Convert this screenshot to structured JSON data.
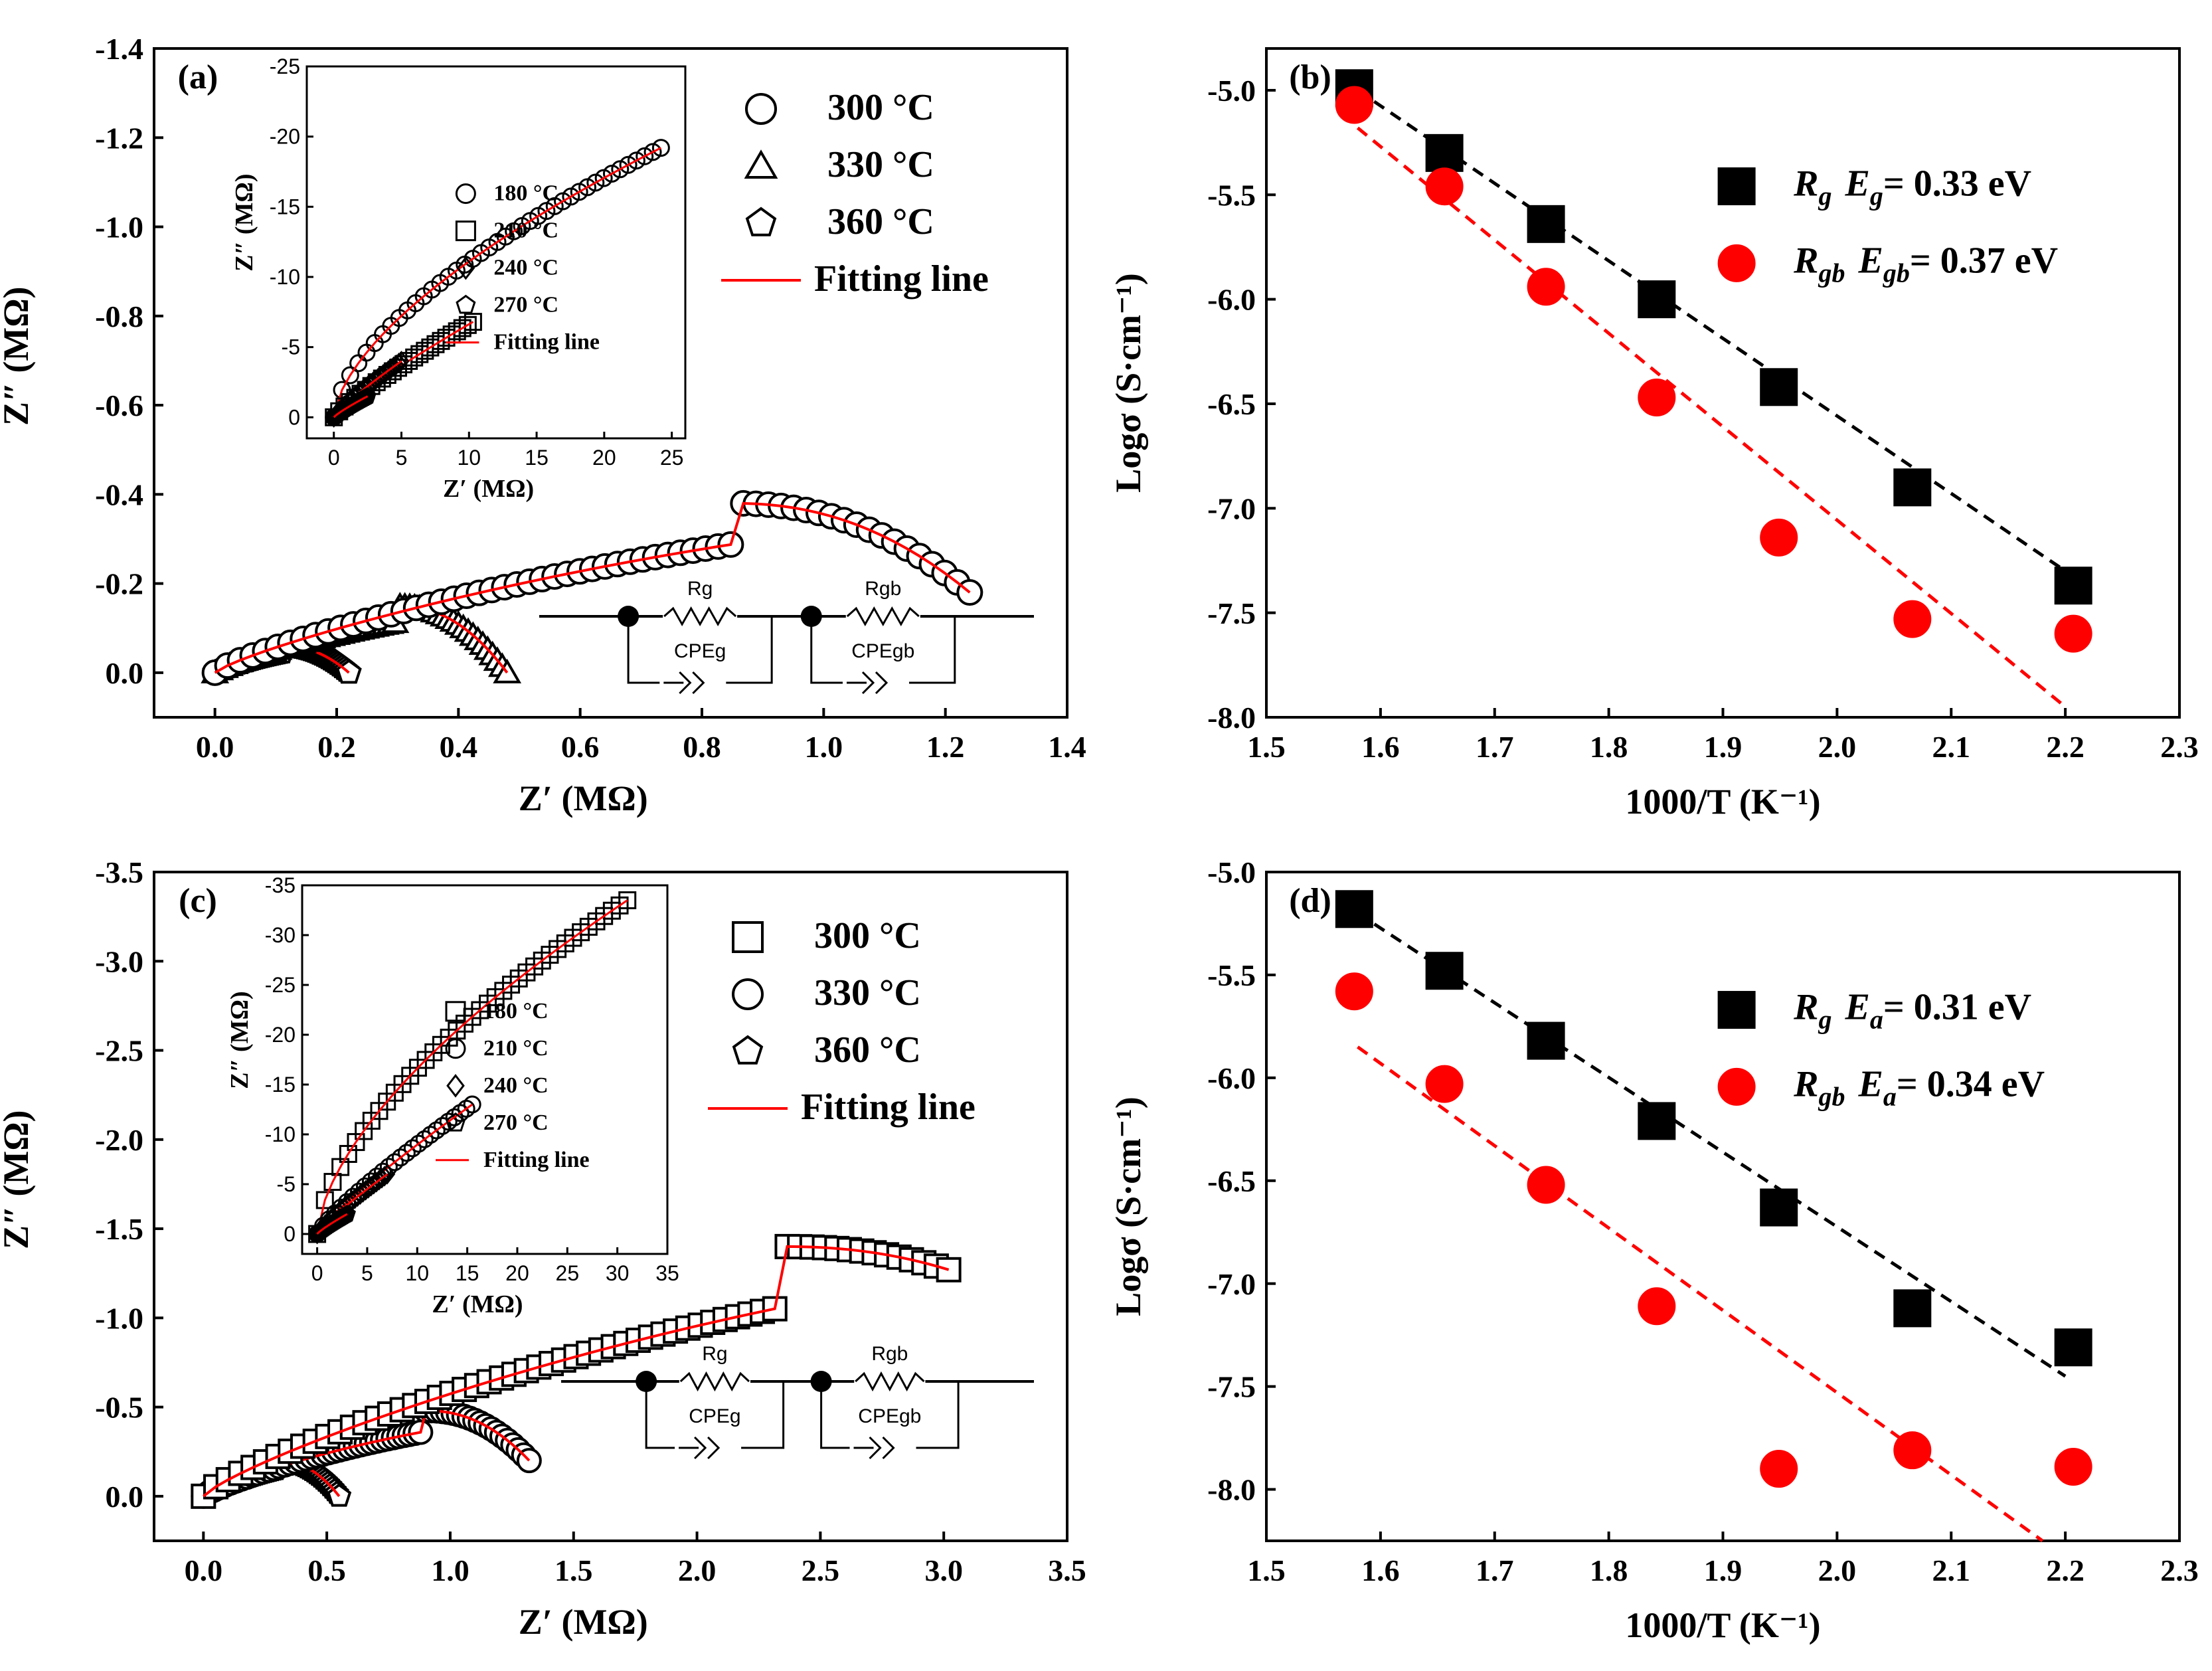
{
  "figure": {
    "panels": [
      "(a)",
      "(b)",
      "(c)",
      "(d)"
    ]
  },
  "circuit": {
    "rg": "Rg",
    "rgb": "Rgb",
    "cpeg": "CPEg",
    "cpegb": "CPEgb"
  },
  "chart_data": [
    {
      "id": "a",
      "type": "scatter",
      "panel_label": "(a)",
      "xlabel": "Z′ (MΩ)",
      "ylabel": "Z″ (MΩ)",
      "xlim": [
        -0.1,
        1.4
      ],
      "ylim": [
        0.1,
        -1.4
      ],
      "xticks": [
        0.0,
        0.2,
        0.4,
        0.6,
        0.8,
        1.0,
        1.2,
        1.4
      ],
      "yticks": [
        0.0,
        -0.2,
        -0.4,
        -0.6,
        -0.8,
        -1.0,
        -1.2,
        -1.4
      ],
      "xtick_labels": [
        "0.0",
        "0.2",
        "0.4",
        "0.6",
        "0.8",
        "1.0",
        "1.2",
        "1.4"
      ],
      "ytick_labels": [
        "0.0",
        "-0.2",
        "-0.4",
        "-0.6",
        "-0.8",
        "-1.0",
        "-1.2",
        "-1.4"
      ],
      "legend": [
        "300 °C",
        "330 °C",
        "360 °C",
        "Fitting line"
      ],
      "series": [
        {
          "name": "300 °C",
          "marker": "circle",
          "zr_max": 1.24,
          "zi_end": -0.18,
          "zi_peak": -0.38,
          "peak_at": 0.85
        },
        {
          "name": "330 °C",
          "marker": "triangle",
          "zr_max": 0.48,
          "zi_end": 0.0,
          "zi_peak": -0.15,
          "peak_at": 0.3
        },
        {
          "name": "360 °C",
          "marker": "pentagon",
          "zr_max": 0.22,
          "zi_end": 0.0,
          "zi_peak": -0.06,
          "peak_at": 0.11
        }
      ],
      "inset": {
        "xlabel": "Z′ (MΩ)",
        "ylabel": "Z″ (MΩ)",
        "xlim": [
          -2,
          26
        ],
        "ylim": [
          1.5,
          -25
        ],
        "xticks": [
          0,
          5,
          10,
          15,
          20,
          25
        ],
        "yticks": [
          0,
          -5,
          -10,
          -15,
          -20,
          -25
        ],
        "xtick_labels": [
          "0",
          "5",
          "10",
          "15",
          "20",
          "25"
        ],
        "ytick_labels": [
          "0",
          "-5",
          "-10",
          "-15",
          "-20",
          "-25"
        ],
        "legend": [
          "180 °C",
          "210 °C",
          "240 °C",
          "270 °C",
          "Fitting line"
        ],
        "series": [
          {
            "name": "180 °C",
            "marker": "circle",
            "zr_end": 24.2,
            "zi_end": -19.2
          },
          {
            "name": "210 °C",
            "marker": "square",
            "zr_end": 10.3,
            "zi_end": -6.8
          },
          {
            "name": "240 °C",
            "marker": "diamond",
            "zr_end": 5.0,
            "zi_end": -4.0
          },
          {
            "name": "270 °C",
            "marker": "pentagon",
            "zr_end": 2.5,
            "zi_end": -1.5
          }
        ]
      }
    },
    {
      "id": "b",
      "type": "scatter",
      "panel_label": "(b)",
      "xlabel": "1000/T (K⁻¹)",
      "ylabel": "Logσ (S·cm⁻¹)",
      "xlim": [
        1.5,
        2.3
      ],
      "ylim": [
        -8.0,
        -4.8
      ],
      "xticks": [
        1.5,
        1.6,
        1.7,
        1.8,
        1.9,
        2.0,
        2.1,
        2.2,
        2.3
      ],
      "yticks": [
        -5.0,
        -5.5,
        -6.0,
        -6.5,
        -7.0,
        -7.5,
        -8.0
      ],
      "xtick_labels": [
        "1.5",
        "1.6",
        "1.7",
        "1.8",
        "1.9",
        "2.0",
        "2.1",
        "2.2",
        "2.3"
      ],
      "ytick_labels": [
        "-5.0",
        "-5.5",
        "-6.0",
        "-6.5",
        "-7.0",
        "-7.5",
        "-8.0"
      ],
      "x": [
        1.577,
        1.656,
        1.745,
        1.842,
        1.949,
        2.066,
        2.207
      ],
      "series": [
        {
          "name": "Rg",
          "legend_name": "R",
          "legend_sub": "g",
          "legend_e": "E",
          "legend_esub": "g",
          "legend_value": "= 0.33 eV",
          "color": "#000000",
          "marker": "square",
          "values": [
            -4.99,
            -5.3,
            -5.64,
            -6.0,
            -6.42,
            -6.9,
            -7.37
          ],
          "fit": [
            [
              1.58,
              -5.0
            ],
            [
              2.2,
              -7.3
            ]
          ]
        },
        {
          "name": "Rgb",
          "legend_name": "R",
          "legend_sub": "gb",
          "legend_e": "E",
          "legend_esub": "gb",
          "legend_value": "= 0.37 eV",
          "color": "#ff0000",
          "marker": "circle",
          "values": [
            -5.07,
            -5.46,
            -5.94,
            -6.47,
            -7.14,
            -7.53,
            -7.6
          ],
          "fit": [
            [
              1.58,
              -5.18
            ],
            [
              2.2,
              -7.95
            ]
          ]
        }
      ]
    },
    {
      "id": "c",
      "type": "scatter",
      "panel_label": "(c)",
      "xlabel": "Z′ (MΩ)",
      "ylabel": "Z″ (MΩ)",
      "xlim": [
        -0.2,
        3.5
      ],
      "ylim": [
        0.25,
        -3.5
      ],
      "xticks": [
        0.0,
        0.5,
        1.0,
        1.5,
        2.0,
        2.5,
        3.0,
        3.5
      ],
      "yticks": [
        0.0,
        -0.5,
        -1.0,
        -1.5,
        -2.0,
        -2.5,
        -3.0,
        -3.5
      ],
      "xtick_labels": [
        "0.0",
        "0.5",
        "1.0",
        "1.5",
        "2.0",
        "2.5",
        "3.0",
        "3.5"
      ],
      "ytick_labels": [
        "0.0",
        "-0.5",
        "-1.0",
        "-1.5",
        "-2.0",
        "-2.5",
        "-3.0",
        "-3.5"
      ],
      "legend": [
        "300 °C",
        "330 °C",
        "360 °C",
        "Fitting line"
      ],
      "series": [
        {
          "name": "300 °C",
          "marker": "square",
          "zr_max": 3.02,
          "zi_end": -1.27,
          "zi_peak": -1.4,
          "peak_at": 2.35
        },
        {
          "name": "330 °C",
          "marker": "circle",
          "zr_max": 1.32,
          "zi_end": -0.2,
          "zi_peak": -0.48,
          "peak_at": 0.9
        },
        {
          "name": "360 °C",
          "marker": "pentagon",
          "zr_max": 0.55,
          "zi_end": 0.0,
          "zi_peak": -0.2,
          "peak_at": 0.3
        }
      ],
      "inset": {
        "xlabel": "Z′ (MΩ)",
        "ylabel": "Z″ (MΩ)",
        "xlim": [
          -1.5,
          35
        ],
        "ylim": [
          2,
          -35
        ],
        "xticks": [
          0,
          5,
          10,
          15,
          20,
          25,
          30,
          35
        ],
        "yticks": [
          0,
          -5,
          -10,
          -15,
          -20,
          -25,
          -30,
          -35
        ],
        "xtick_labels": [
          "0",
          "5",
          "10",
          "15",
          "20",
          "25",
          "30",
          "35"
        ],
        "ytick_labels": [
          "0",
          "-5",
          "-10",
          "-15",
          "-20",
          "-25",
          "-30",
          "-35"
        ],
        "legend": [
          "180 °C",
          "210 °C",
          "240 °C",
          "270 °C",
          "Fitting line"
        ],
        "series": [
          {
            "name": "180 °C",
            "marker": "square",
            "zr_end": 31.0,
            "zi_end": -33.5
          },
          {
            "name": "210 °C",
            "marker": "circle",
            "zr_end": 15.5,
            "zi_end": -13.0
          },
          {
            "name": "240 °C",
            "marker": "diamond",
            "zr_end": 7.0,
            "zi_end": -6.0
          },
          {
            "name": "270 °C",
            "marker": "pentagon",
            "zr_end": 3.0,
            "zi_end": -2.0
          }
        ]
      }
    },
    {
      "id": "d",
      "type": "scatter",
      "panel_label": "(d)",
      "xlabel": "1000/T (K⁻¹)",
      "ylabel": "Logσ (S·cm⁻¹)",
      "xlim": [
        1.5,
        2.3
      ],
      "ylim": [
        -8.25,
        -5.0
      ],
      "xticks": [
        1.5,
        1.6,
        1.7,
        1.8,
        1.9,
        2.0,
        2.1,
        2.2,
        2.3
      ],
      "yticks": [
        -5.0,
        -5.5,
        -6.0,
        -6.5,
        -7.0,
        -7.5,
        -8.0
      ],
      "xtick_labels": [
        "1.5",
        "1.6",
        "1.7",
        "1.8",
        "1.9",
        "2.0",
        "2.1",
        "2.2",
        "2.3"
      ],
      "ytick_labels": [
        "-5.0",
        "-5.5",
        "-6.0",
        "-6.5",
        "-7.0",
        "-7.5",
        "-8.0"
      ],
      "x": [
        1.577,
        1.656,
        1.745,
        1.842,
        1.949,
        2.066,
        2.207
      ],
      "series": [
        {
          "name": "Rg",
          "legend_name": "R",
          "legend_sub": "g",
          "legend_e": "E",
          "legend_esub": "a",
          "legend_value": "= 0.31 eV",
          "color": "#000000",
          "marker": "square",
          "values": [
            -5.18,
            -5.48,
            -5.82,
            -6.21,
            -6.63,
            -7.12,
            -7.31
          ],
          "fit": [
            [
              1.58,
              -5.2
            ],
            [
              2.2,
              -7.45
            ]
          ]
        },
        {
          "name": "Rgb",
          "legend_name": "R",
          "legend_sub": "gb",
          "legend_e": "E",
          "legend_esub": "a",
          "legend_value": "= 0.34 eV",
          "color": "#ff0000",
          "marker": "circle",
          "values": [
            -5.58,
            -6.03,
            -6.52,
            -7.11,
            -7.9,
            -7.81,
            -7.89
          ],
          "fit": [
            [
              1.58,
              -5.85
            ],
            [
              2.18,
              -8.25
            ]
          ]
        }
      ]
    }
  ]
}
